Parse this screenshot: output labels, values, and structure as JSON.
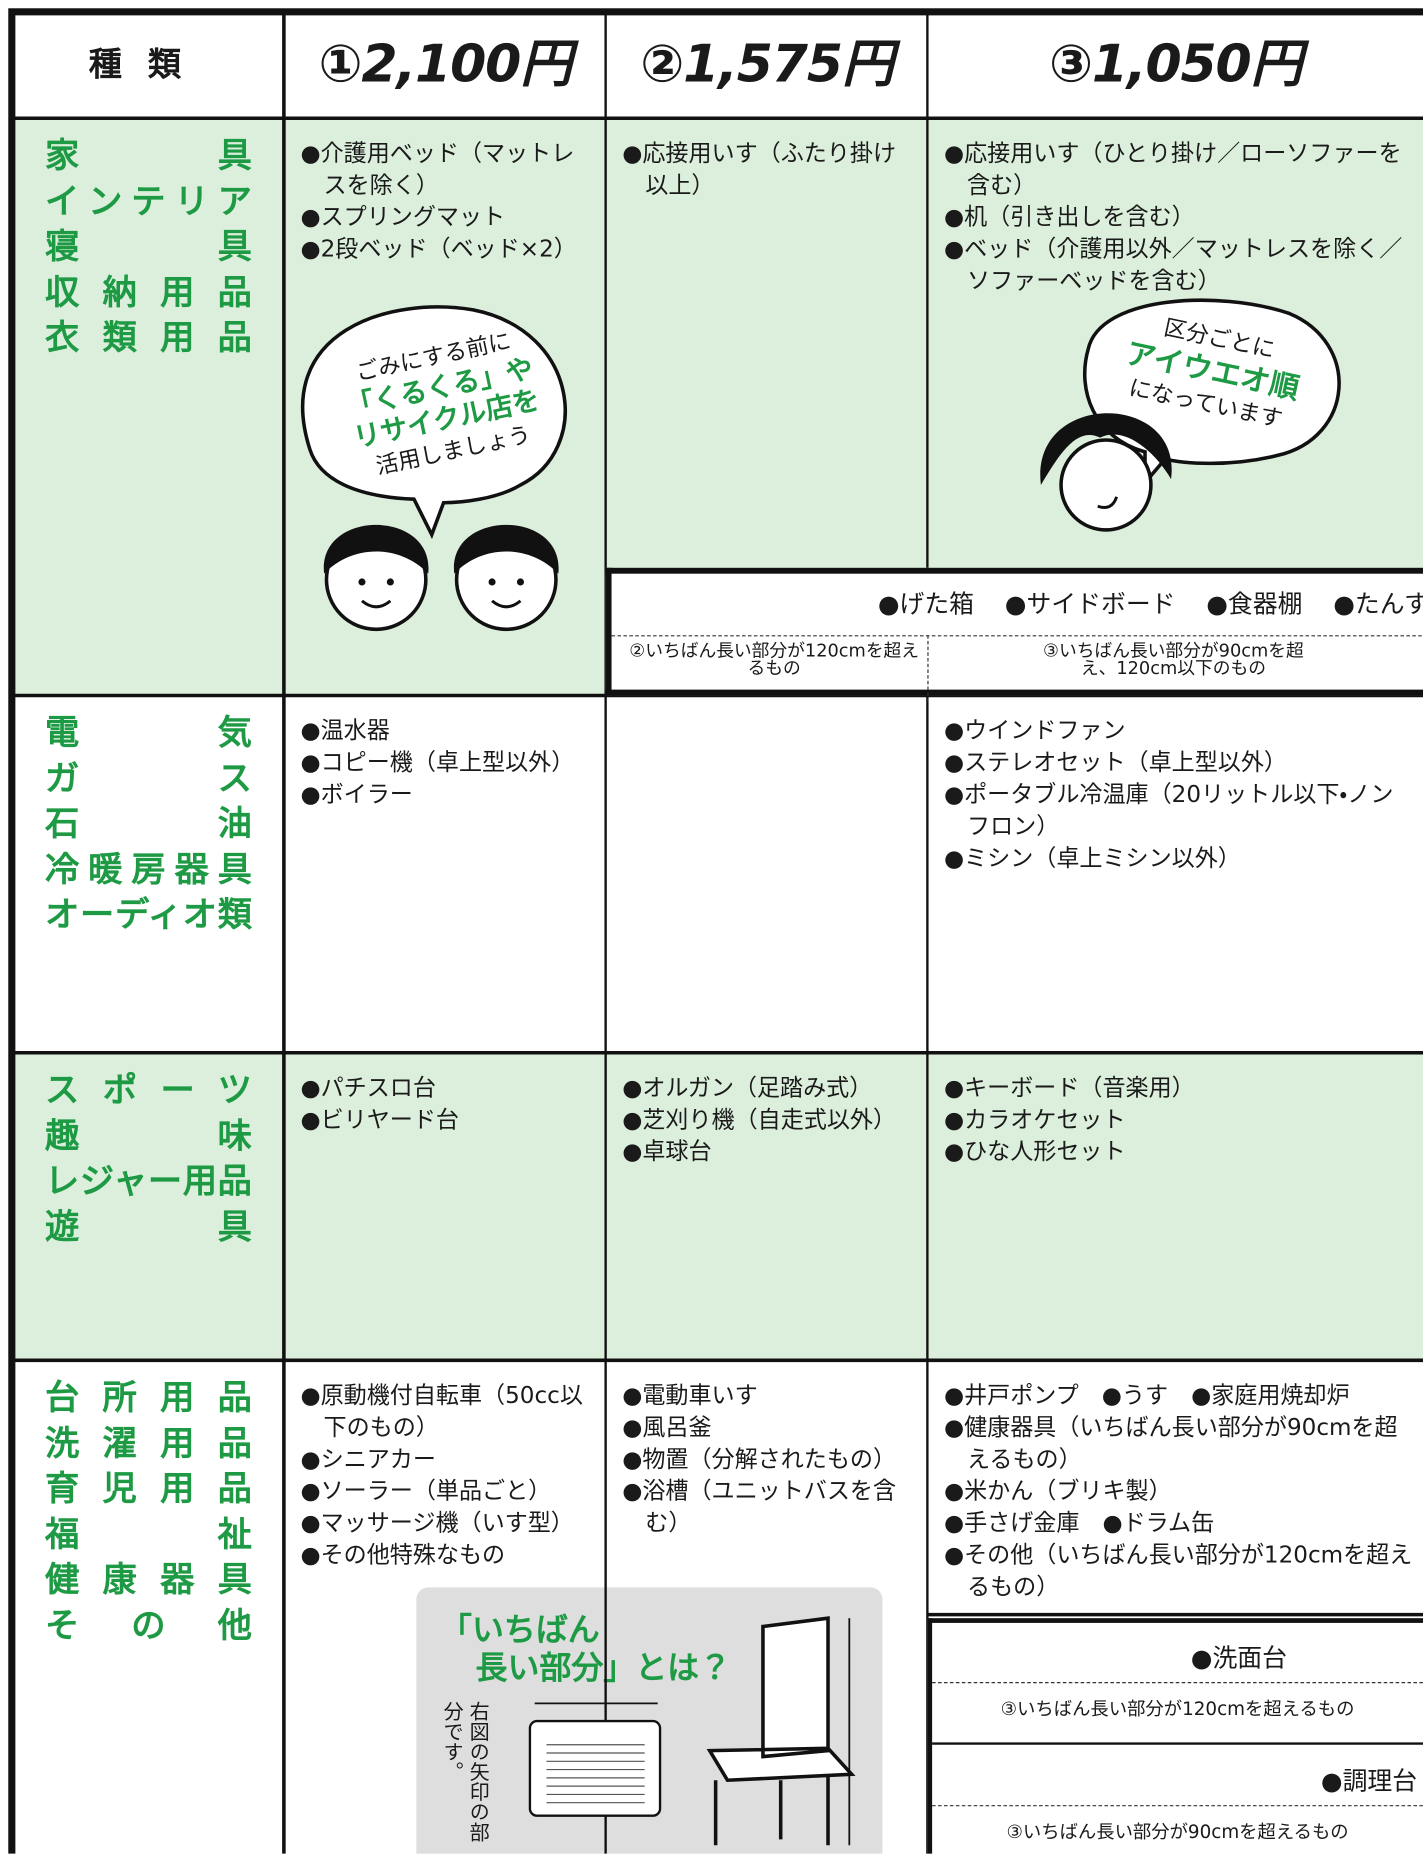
{
  "header": {
    "category": "種類",
    "columns": [
      "①2,100円",
      "②1,575円",
      "③1,050円"
    ]
  },
  "rows": [
    {
      "category": [
        "家具",
        "インテリア",
        "寝具",
        "収納用品",
        "衣類用品"
      ],
      "items": [
        [
          "●介護用ベッド（マットレスを除く）",
          "●スプリングマット",
          "●2段ベッド（ベッド×2）"
        ],
        [
          "●応接用いす（ふたり掛け以上）"
        ],
        [
          "●応接用いす（ひとり掛け／ローソファーを含む）",
          "●机（引き出しを含む）",
          "●ベッド（介護用以外／マットレスを除く／ソファーベッドを含む）"
        ]
      ]
    },
    {
      "category": [
        "電気",
        "ガス",
        "石油",
        "冷暖房器具",
        "オーディオ類"
      ],
      "items": [
        [
          "●温水器",
          "●コピー機（卓上型以外）",
          "●ボイラー"
        ],
        [],
        [
          "●ウインドファン",
          "●ステレオセット（卓上型以外）",
          "●ポータブル冷温庫（20リットル以下・ノンフロン）",
          "●ミシン（卓上ミシン以外）"
        ]
      ]
    },
    {
      "category": [
        "スポーツ",
        "趣味",
        "レジャー用品",
        "遊具"
      ],
      "items": [
        [
          "●パチスロ台",
          "●ビリヤード台"
        ],
        [
          "●オルガン（足踏み式）",
          "●芝刈り機（自走式以外）",
          "●卓球台"
        ],
        [
          "●キーボード（音楽用）",
          "●カラオケセット",
          "●ひな人形セット"
        ]
      ]
    },
    {
      "category": [
        "台所用品",
        "洗濯用品",
        "育児用品",
        "福祉",
        "健康器具",
        "その他"
      ],
      "items": [
        [
          "●原動機付自転車（50cc以下のもの）",
          "●シニアカー",
          "●ソーラー（単品ごと）",
          "●マッサージ機（いす型）",
          "●その他特殊なもの"
        ],
        [
          "●電動車いす",
          "●風呂釜",
          "●物置（分解されたもの）",
          "●浴槽（ユニットバスを含む）"
        ],
        [
          "●井戸ポンプ　●うす　●家庭用焼却炉",
          "●健康器具（いちばん長い部分が90cmを超えるもの）",
          "●米かん（ブリキ製）",
          "●手さげ金庫　●ドラム缶",
          "●その他（いちばん長い部分が120cmを超えるもの）"
        ]
      ]
    }
  ],
  "bubbles": {
    "left": [
      "ごみにする前に",
      "「くるくる」や",
      "リサイクル店を",
      "活用しましょう"
    ],
    "right": [
      "区分ごとに",
      "アイウエオ順",
      "になっています"
    ]
  },
  "shared_items": {
    "items": [
      "●げた箱",
      "●サイドボード",
      "●食器棚",
      "●たんす"
    ],
    "notes": [
      "②いちばん長い部分が120cmを超えるもの",
      "③いちばん長い部分が90cmを超え、120cm以下のもの"
    ]
  },
  "longest_part": {
    "title": [
      "「いちばん",
      "長い部分」とは？"
    ],
    "caption": "右図の矢印の部分です。"
  },
  "extra_items": [
    {
      "item": "●洗面台",
      "note": "③いちばん長い部分が120cmを超えるもの"
    },
    {
      "item": "●調理台",
      "note": "③いちばん長い部分が90cmを超えるもの"
    }
  ]
}
